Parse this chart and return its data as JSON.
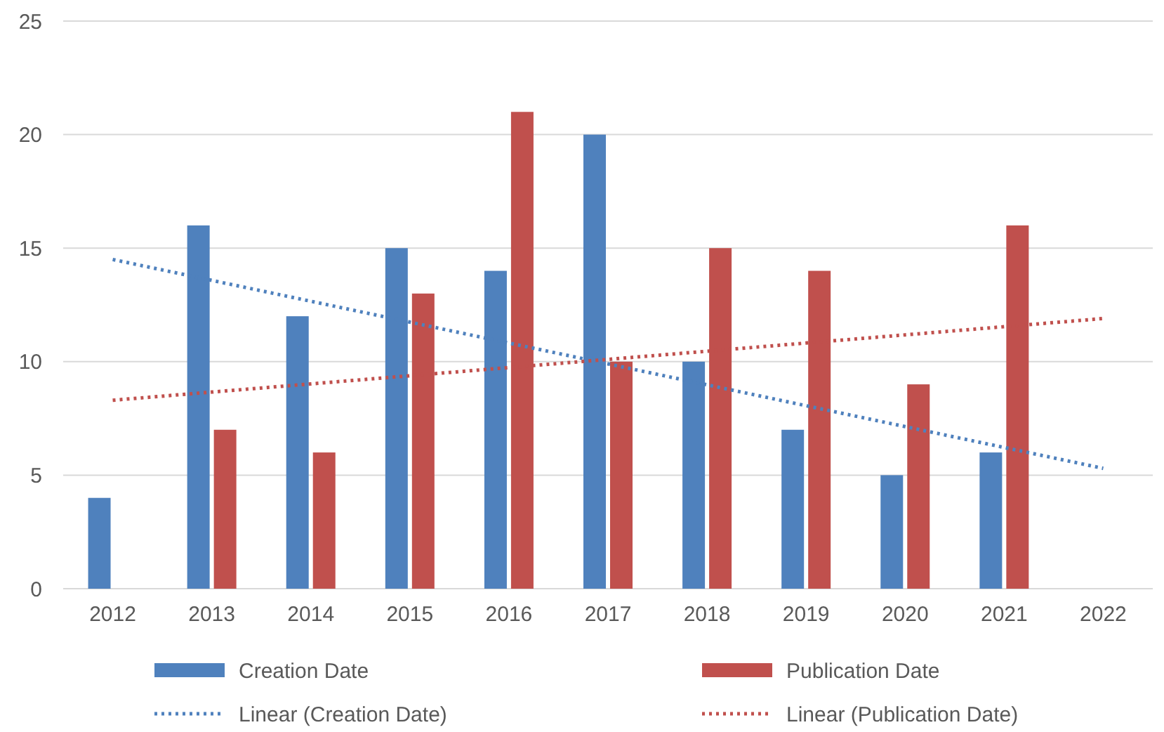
{
  "chart_data": {
    "type": "bar",
    "categories": [
      "2012",
      "2013",
      "2014",
      "2015",
      "2016",
      "2017",
      "2018",
      "2019",
      "2020",
      "2021",
      "2022"
    ],
    "series": [
      {
        "name": "Creation Date",
        "color": "#4f81bd",
        "values": [
          4,
          16,
          12,
          15,
          14,
          20,
          10,
          7,
          5,
          6,
          null
        ]
      },
      {
        "name": "Publication Date",
        "color": "#c0504d",
        "values": [
          null,
          7,
          6,
          13,
          21,
          10,
          15,
          14,
          9,
          16,
          null
        ]
      },
      {
        "name": "Linear (Creation Date)",
        "type": "line",
        "line_style": "dotted",
        "color": "#4f81bd",
        "values": [
          14.5,
          13.58,
          12.66,
          11.74,
          10.82,
          9.9,
          8.98,
          8.06,
          7.14,
          6.22,
          5.3
        ]
      },
      {
        "name": "Linear (Publication Date)",
        "type": "line",
        "line_style": "dotted",
        "color": "#c0504d",
        "values": [
          8.3,
          8.66,
          9.02,
          9.38,
          9.74,
          10.1,
          10.46,
          10.82,
          11.18,
          11.54,
          11.9
        ]
      }
    ],
    "ylim": [
      0,
      25
    ],
    "yticks": [
      0,
      5,
      10,
      15,
      20,
      25
    ],
    "grid": "y",
    "legend": "bottom"
  }
}
